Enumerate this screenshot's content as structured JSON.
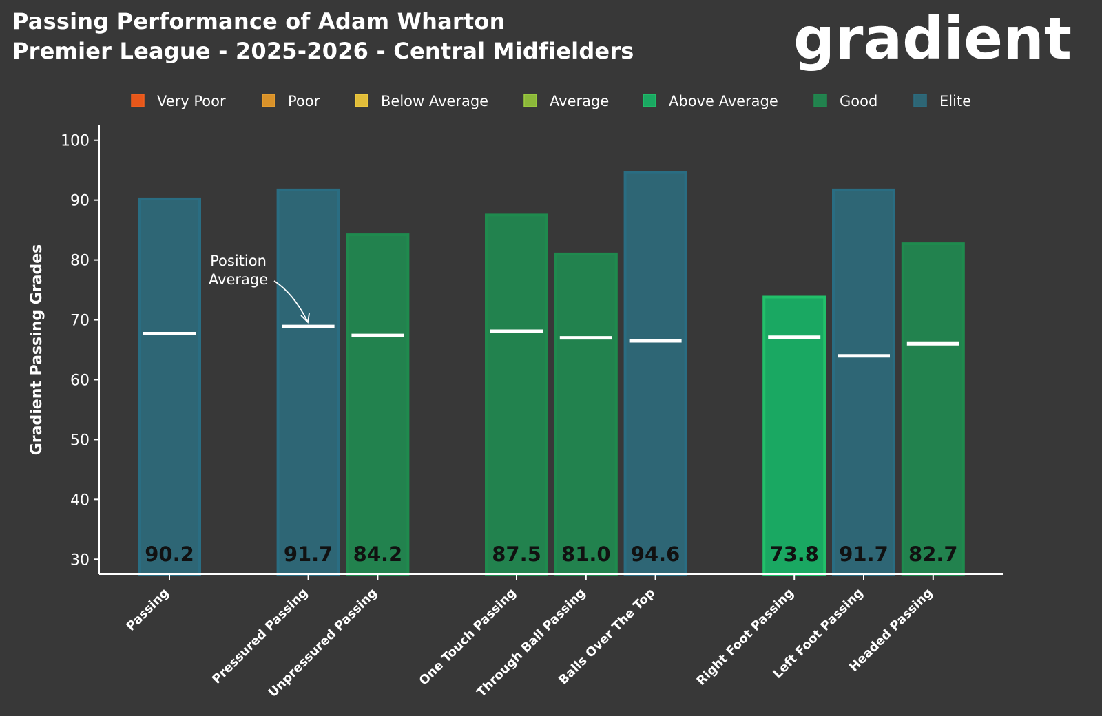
{
  "header": {
    "title_line1": "Passing Performance of Adam Wharton",
    "title_line2": "Premier League - 2025-2026 - Central Midfielders",
    "logo_text": "gradient"
  },
  "chart_data": {
    "type": "bar",
    "title": "Passing Performance of Adam Wharton",
    "subtitle": "Premier League - 2025-2026 - Central Midfielders",
    "ylabel": "Gradient Passing Grades",
    "xlabel": "",
    "ylim": [
      27.5,
      102.5
    ],
    "yticks": [
      30,
      40,
      50,
      60,
      70,
      80,
      90,
      100
    ],
    "grid": false,
    "legend_position": "top",
    "legend": [
      {
        "label": "Very Poor",
        "color": "#e8571a"
      },
      {
        "label": "Poor",
        "color": "#d9922a"
      },
      {
        "label": "Below Average",
        "color": "#e1bd3a"
      },
      {
        "label": "Average",
        "color": "#8cb83a"
      },
      {
        "label": "Above Average",
        "color": "#1aa862"
      },
      {
        "label": "Good",
        "color": "#22824e"
      },
      {
        "label": "Elite",
        "color": "#2e6675"
      }
    ],
    "groups": [
      [
        0
      ],
      [
        1,
        2
      ],
      [
        3,
        4,
        5
      ],
      [
        6,
        7,
        8
      ]
    ],
    "categories": [
      "Passing",
      "Pressured Passing",
      "Unpressured Passing",
      "One Touch Passing",
      "Through Ball Passing",
      "Balls Over The Top",
      "Right Foot Passing",
      "Left Foot Passing",
      "Headed Passing"
    ],
    "values": [
      90.2,
      91.7,
      84.2,
      87.5,
      81.0,
      94.6,
      73.8,
      91.7,
      82.7
    ],
    "value_labels": [
      "90.2",
      "91.7",
      "84.2",
      "87.5",
      "81.0",
      "94.6",
      "73.8",
      "91.7",
      "82.7"
    ],
    "ratings": [
      "Elite",
      "Elite",
      "Good",
      "Good",
      "Good",
      "Elite",
      "Above Average",
      "Elite",
      "Good"
    ],
    "position_average": [
      67.7,
      68.9,
      67.4,
      68.1,
      67.0,
      66.5,
      67.1,
      64.0,
      66.0
    ],
    "annotation": {
      "text_line1": "Position",
      "text_line2": "Average",
      "target_index": 1
    }
  }
}
